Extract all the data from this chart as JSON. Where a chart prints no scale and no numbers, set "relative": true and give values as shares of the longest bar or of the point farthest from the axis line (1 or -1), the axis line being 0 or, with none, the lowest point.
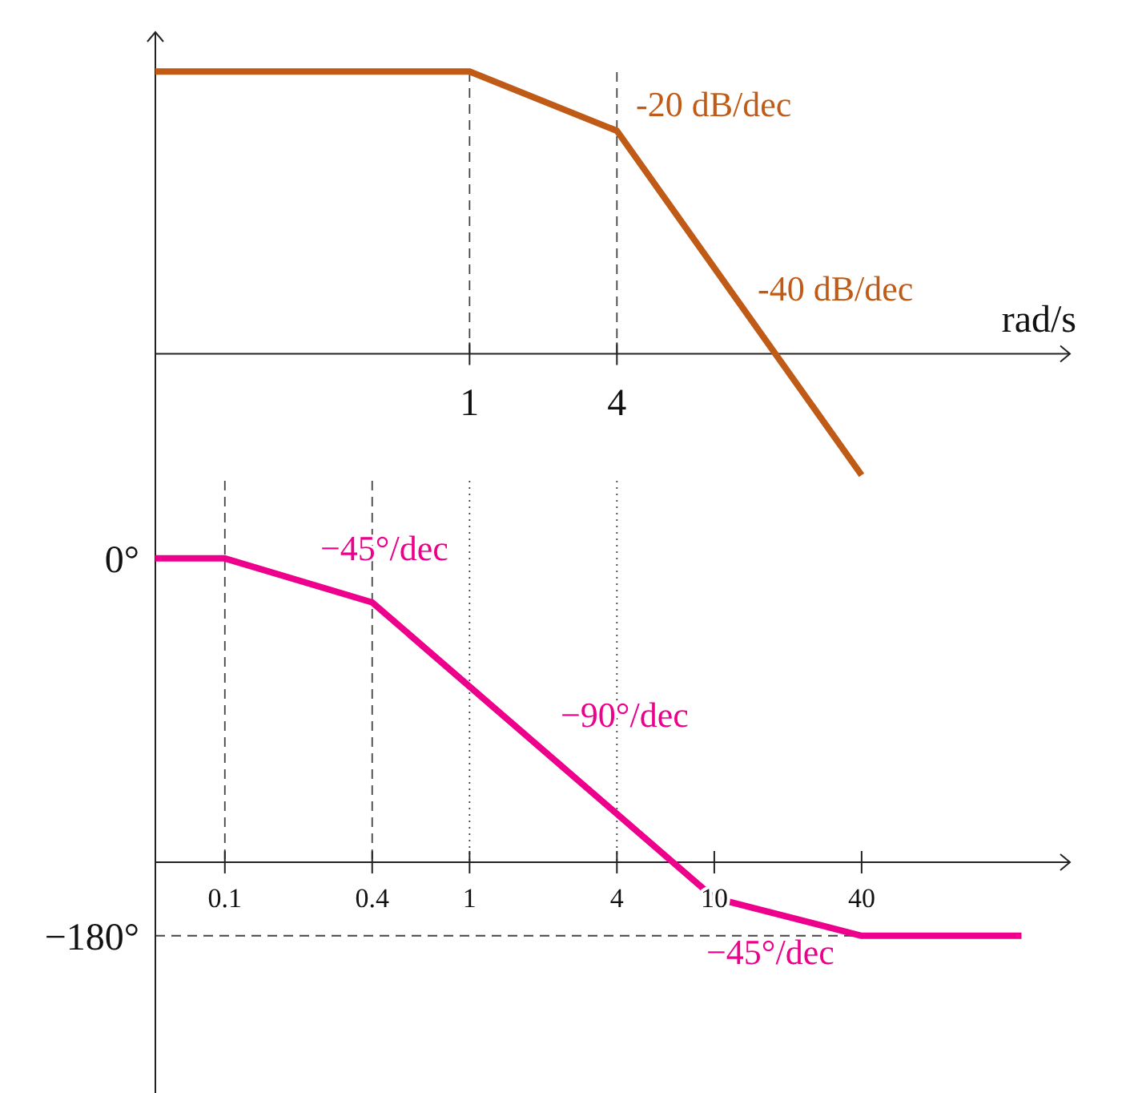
{
  "chart_data": [
    {
      "type": "line",
      "relative": true,
      "log": "x",
      "xlabel": "rad/s",
      "tick_labels": "x",
      "x": [
        0.052,
        1,
        4,
        40
      ],
      "xlim": [
        0.052,
        284
      ],
      "xticks": [
        1,
        4
      ],
      "series": [
        {
          "color": "#bf5b17",
          "values": [
            1,
            1,
            0.79,
            -0.43
          ]
        }
      ],
      "ref_lines": [
        {
          "axis": "x",
          "value": 1,
          "line_style": "dashed"
        },
        {
          "axis": "x",
          "value": 4,
          "line_style": "dashed"
        }
      ],
      "annotations": [
        "-20 dB/dec",
        "-40 dB/dec"
      ]
    },
    {
      "type": "line",
      "log": "x",
      "x": [
        0.052,
        0.1,
        0.4,
        10,
        40,
        180
      ],
      "xlim": [
        0.052,
        284
      ],
      "xticks": [
        0.1,
        0.4,
        1,
        4,
        10,
        40
      ],
      "ylim": [
        -255,
        37
      ],
      "yticks": [
        {
          "value": 0,
          "label": "0°"
        },
        {
          "value": -180,
          "label": "−180°"
        }
      ],
      "series": [
        {
          "color": "#ec008c",
          "values": [
            0,
            0,
            -21,
            -162,
            -180,
            -180
          ]
        }
      ],
      "ref_lines": [
        {
          "axis": "x",
          "value": 0.1,
          "line_style": "dashed"
        },
        {
          "axis": "x",
          "value": 0.4,
          "line_style": "dashed"
        },
        {
          "axis": "x",
          "value": 1,
          "line_style": "dotted"
        },
        {
          "axis": "x",
          "value": 4,
          "line_style": "dotted"
        },
        {
          "axis": "y",
          "value": -180,
          "line_style": "dashed"
        }
      ],
      "annotations": [
        "−45°/dec",
        "−90°/dec",
        "−45°/dec"
      ]
    }
  ]
}
